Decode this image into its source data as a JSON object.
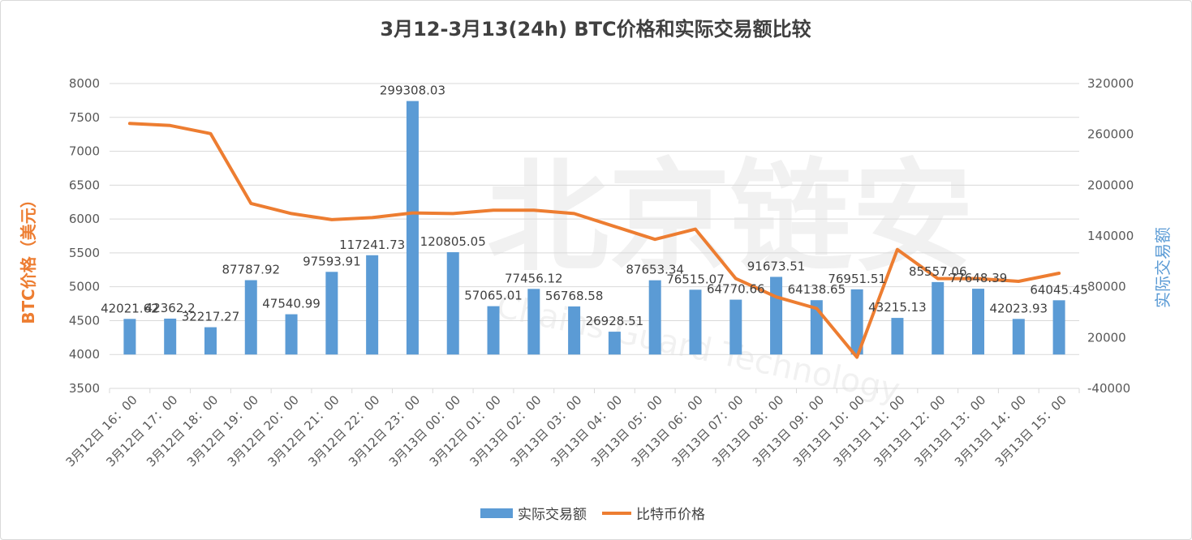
{
  "chart_data": {
    "type": "bar+line",
    "title": "3月12-3月13(24h) BTC价格和实际交易额比较",
    "categories": [
      "3月12日 16：00",
      "3月12日 17：00",
      "3月12日 18：00",
      "3月12日 19：00",
      "3月12日 20：00",
      "3月12日 21：00",
      "3月12日 22：00",
      "3月12日 23：00",
      "3月13日 00：00",
      "3月12日 01：00",
      "3月13日 02：00",
      "3月13日 03：00",
      "3月13日 04：00",
      "3月13日 05：00",
      "3月13日 06：00",
      "3月13日 07：00",
      "3月13日 08：00",
      "3月13日 09：00",
      "3月13日 10：00",
      "3月13日 11：00",
      "3月13日 12：00",
      "3月13日 13：00",
      "3月13日 14：00",
      "3月13日 15：00"
    ],
    "bar_series": {
      "name": "实际交易额",
      "color": "#5b9bd5",
      "axis": "right",
      "values": [
        42021.62,
        42362.2,
        32217.27,
        87787.92,
        47540.99,
        97593.91,
        117241.73,
        299308.03,
        120805.05,
        57065.01,
        77456.12,
        56768.58,
        26928.51,
        87653.34,
        76515.07,
        64770.66,
        91673.51,
        64138.65,
        76951.51,
        43215.13,
        85557.06,
        77648.39,
        42023.93,
        64045.45
      ],
      "labels": [
        "42021.62",
        "42362.2",
        "32217.27",
        "87787.92",
        "47540.99",
        "97593.91",
        "117241.73",
        "299308.03",
        "120805.05",
        "57065.01",
        "77456.12",
        "56768.58",
        "26928.51",
        "87653.34",
        "76515.07",
        "64770.66",
        "91673.51",
        "64138.65",
        "76951.51",
        "43215.13",
        "85557.06",
        "77648.39",
        "42023.93",
        "64045.45"
      ]
    },
    "line_series": {
      "name": "比特币价格",
      "color": "#ed7d31",
      "axis": "left",
      "values": [
        7410,
        7380,
        7260,
        6230,
        6080,
        5990,
        6020,
        6090,
        6080,
        6130,
        6130,
        6080,
        5890,
        5700,
        5850,
        5120,
        4850,
        4680,
        3960,
        5550,
        5120,
        5120,
        5080,
        5200
      ]
    },
    "left_axis": {
      "title": "BTC价格（美元）",
      "ylim": [
        3500,
        8000
      ],
      "ticks": [
        "8000",
        "7500",
        "7000",
        "6500",
        "6000",
        "5500",
        "5000",
        "4500",
        "4000",
        "3500"
      ]
    },
    "right_axis": {
      "title": "实际交易额",
      "ylim": [
        -40000,
        320000
      ],
      "ticks": [
        "320000",
        "260000",
        "200000",
        "140000",
        "80000",
        "20000",
        "-40000"
      ]
    },
    "legend_position": "bottom",
    "gridlines": true
  },
  "watermark": {
    "main": "北京链安",
    "sub": "Chains Guard Technology"
  }
}
